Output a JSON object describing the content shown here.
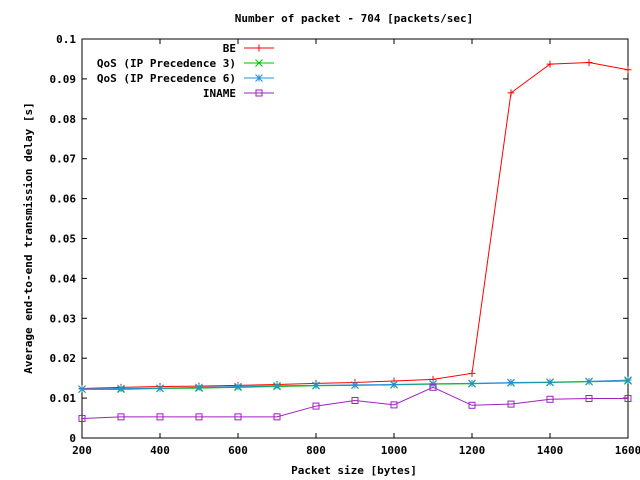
{
  "chart_data": {
    "type": "line",
    "title": "Number of packet - 704 [packets/sec]",
    "xlabel": "Packet size [bytes]",
    "ylabel": "Average end-to-end transmission delay [s]",
    "xlim": [
      200,
      1600
    ],
    "ylim": [
      0,
      0.1
    ],
    "xticks": [
      "200",
      "400",
      "600",
      "800",
      "1000",
      "1200",
      "1400",
      "1600"
    ],
    "yticks": [
      "0",
      "0.01",
      "0.02",
      "0.03",
      "0.04",
      "0.05",
      "0.06",
      "0.07",
      "0.08",
      "0.09",
      "0.1"
    ],
    "grid": false,
    "legend_position": "top-right",
    "x": [
      200,
      300,
      400,
      500,
      600,
      700,
      800,
      900,
      1000,
      1100,
      1200,
      1300,
      1400,
      1500,
      1600
    ],
    "series": [
      {
        "name": "BE",
        "color": "#ff0000",
        "marker": "plus",
        "values": [
          0.0124,
          0.0127,
          0.0129,
          0.013,
          0.0132,
          0.0134,
          0.0137,
          0.0139,
          0.0143,
          0.0147,
          0.0162,
          0.0865,
          0.0937,
          0.0941,
          0.0923
        ]
      },
      {
        "name": "QoS (IP Precedence 3)",
        "color": "#00bb00",
        "marker": "cross",
        "values": [
          0.0122,
          0.0122,
          0.0124,
          0.0125,
          0.0127,
          0.0129,
          0.0131,
          0.0132,
          0.0133,
          0.0135,
          0.0136,
          0.0138,
          0.0139,
          0.0141,
          0.0143
        ]
      },
      {
        "name": "QoS (IP Precedence 6)",
        "color": "#2a8fd8",
        "marker": "star",
        "values": [
          0.0123,
          0.0124,
          0.0125,
          0.0127,
          0.0129,
          0.0131,
          0.0132,
          0.0133,
          0.0134,
          0.0136,
          0.0137,
          0.0139,
          0.014,
          0.0142,
          0.0145
        ]
      },
      {
        "name": "INAME",
        "color": "#a020c0",
        "marker": "square",
        "values": [
          0.0049,
          0.0053,
          0.0053,
          0.0053,
          0.0053,
          0.0053,
          0.008,
          0.0094,
          0.0083,
          0.0127,
          0.0082,
          0.0085,
          0.0097,
          0.0099,
          0.0099
        ]
      }
    ]
  }
}
